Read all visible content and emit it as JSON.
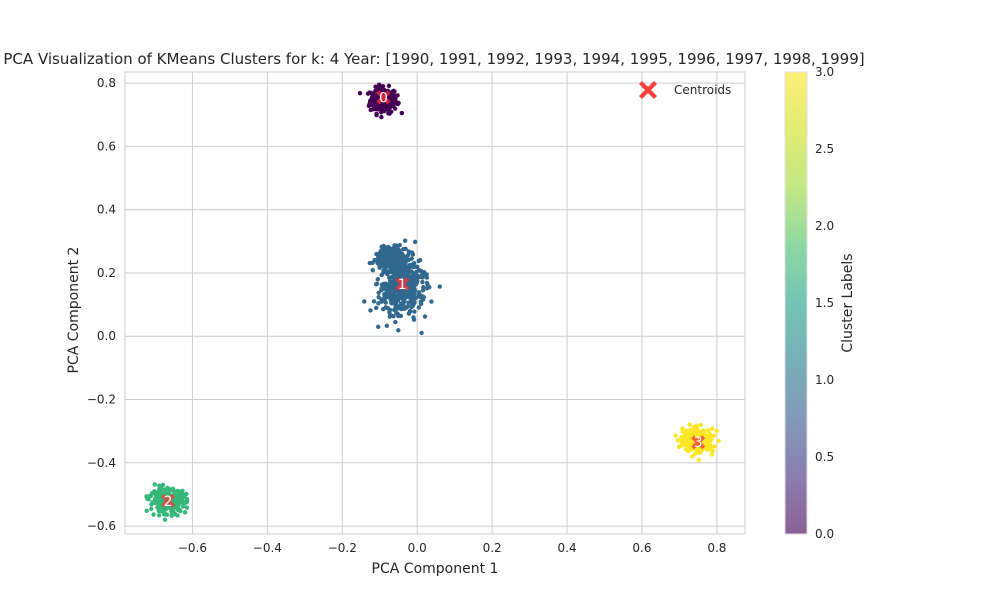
{
  "chart_data": {
    "type": "scatter",
    "title": "PCA Visualization of KMeans Clusters for k: 4 Year: [1990, 1991, 1992, 1993, 1994, 1995, 1996, 1997, 1998, 1999]",
    "xlabel": "PCA Component 1",
    "ylabel": "PCA Component 2",
    "xlim": [
      -0.78,
      0.875
    ],
    "ylim": [
      -0.625,
      0.835
    ],
    "xticks": [
      -0.6,
      -0.4,
      -0.2,
      0.0,
      0.2,
      0.4,
      0.6,
      0.8
    ],
    "yticks": [
      -0.6,
      -0.4,
      -0.2,
      0.0,
      0.2,
      0.4,
      0.6,
      0.8
    ],
    "xtick_labels": [
      "−0.6",
      "−0.4",
      "−0.2",
      "0.0",
      "0.2",
      "0.4",
      "0.6",
      "0.8"
    ],
    "ytick_labels": [
      "−0.6",
      "−0.4",
      "−0.2",
      "0.0",
      "0.2",
      "0.4",
      "0.6",
      "0.8"
    ],
    "grid": true,
    "legend": {
      "position": "top-right",
      "entries": [
        "Centroids"
      ]
    },
    "colorbar": {
      "label": "Cluster Labels",
      "range": [
        0.0,
        3.0
      ],
      "ticks": [
        0.0,
        0.5,
        1.0,
        1.5,
        2.0,
        2.5,
        3.0
      ],
      "tick_labels": [
        "0.0",
        "0.5",
        "1.0",
        "1.5",
        "2.0",
        "2.5",
        "3.0"
      ]
    },
    "colors": {
      "cluster_0": "#440154",
      "cluster_1": "#31688e",
      "cluster_2": "#35b779",
      "cluster_3": "#fde725",
      "centroid": "#ff3333"
    },
    "clusters": [
      {
        "label": "0",
        "center": [
          -0.09,
          0.745
        ],
        "spread": [
          0.018,
          0.02
        ],
        "count": 220
      },
      {
        "label": "1",
        "center": [
          -0.04,
          0.16
        ],
        "spread": [
          0.03,
          0.045
        ],
        "count": 750
      },
      {
        "label": "2",
        "center": [
          -0.665,
          -0.52
        ],
        "spread": [
          0.024,
          0.018
        ],
        "count": 280
      },
      {
        "label": "3",
        "center": [
          0.75,
          -0.33
        ],
        "spread": [
          0.02,
          0.018
        ],
        "count": 300
      }
    ],
    "centroids": [
      {
        "x": -0.09,
        "y": 0.755,
        "label": "0"
      },
      {
        "x": -0.04,
        "y": 0.165,
        "label": "1"
      },
      {
        "x": -0.665,
        "y": -0.52,
        "label": "2"
      },
      {
        "x": 0.75,
        "y": -0.335,
        "label": "3"
      }
    ]
  }
}
